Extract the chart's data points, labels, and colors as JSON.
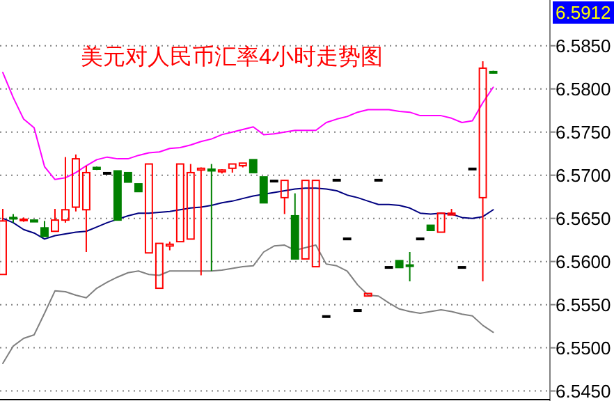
{
  "chart_data": {
    "type": "candlestick",
    "title": "美元对人民币汇率4小时走势图",
    "categories": [
      null,
      null,
      null,
      null,
      null,
      null,
      null,
      null,
      null,
      null,
      null,
      null,
      null,
      null,
      null,
      null,
      null,
      null,
      null,
      null,
      null,
      null,
      null,
      null,
      null,
      null,
      null,
      null,
      null,
      null,
      null,
      null,
      null,
      null,
      null,
      null,
      null,
      null,
      null,
      null,
      null,
      null,
      null,
      null,
      null,
      null,
      null,
      null
    ],
    "ohlc": [
      [
        6.5585,
        6.5661,
        6.5585,
        6.5647
      ],
      [
        6.5651,
        6.5655,
        6.5645,
        6.565
      ],
      [
        6.5648,
        6.5651,
        6.5646,
        6.5649
      ],
      [
        6.5648,
        6.5648,
        6.5646,
        6.5646
      ],
      [
        6.5639,
        6.5647,
        6.5629,
        6.5629
      ],
      [
        6.5635,
        6.5661,
        6.5635,
        6.5648
      ],
      [
        6.5648,
        6.5721,
        6.5645,
        6.566
      ],
      [
        6.5663,
        6.5724,
        6.5658,
        6.5719
      ],
      [
        6.566,
        6.5711,
        6.5611,
        6.5703
      ],
      [
        6.5709,
        6.571,
        6.5706,
        6.5707
      ],
      [
        6.5703,
        6.5703,
        6.5703,
        6.5703
      ],
      [
        6.5705,
        6.5705,
        6.5648,
        6.5648
      ],
      [
        6.5703,
        6.5703,
        6.5692,
        6.5692
      ],
      [
        6.569,
        6.569,
        6.5681,
        6.5681
      ],
      [
        6.561,
        6.5713,
        6.561,
        6.5713
      ],
      [
        6.5569,
        6.5621,
        6.5569,
        6.5621
      ],
      [
        6.5618,
        6.5623,
        6.5613,
        6.562
      ],
      [
        6.5623,
        6.5713,
        6.5623,
        6.5713
      ],
      [
        6.5626,
        6.5713,
        6.5626,
        6.5703
      ],
      [
        6.5706,
        6.5709,
        6.5584,
        6.5708
      ],
      [
        6.5707,
        6.5713,
        6.5589,
        6.5705
      ],
      [
        6.5704,
        6.5707,
        6.5702,
        6.5706
      ],
      [
        6.5708,
        6.5713,
        6.5703,
        6.5713
      ],
      [
        6.5711,
        6.5714,
        6.5709,
        6.5714
      ],
      [
        6.5718,
        6.5718,
        6.5703,
        6.5703
      ],
      [
        6.5698,
        6.5698,
        6.5668,
        6.5668
      ],
      [
        6.5694,
        6.5694,
        6.5694,
        6.5694
      ],
      [
        6.5674,
        6.5694,
        6.5655,
        6.5694
      ],
      [
        6.5653,
        6.5679,
        6.5603,
        6.5603
      ],
      [
        6.5603,
        6.5694,
        6.5603,
        6.5694
      ],
      [
        6.5594,
        6.5694,
        6.5594,
        6.5694
      ],
      [
        6.5537,
        6.5537,
        6.5537,
        6.5537
      ],
      [
        6.5695,
        6.5695,
        6.5695,
        6.5695
      ],
      [
        6.5627,
        6.5627,
        6.5627,
        6.5627
      ],
      [
        6.5544,
        6.5544,
        6.5544,
        6.5544
      ],
      [
        6.556,
        6.5563,
        6.556,
        6.5563
      ],
      [
        6.5695,
        6.5695,
        6.5695,
        6.5695
      ],
      [
        6.5594,
        6.5594,
        6.5594,
        6.5594
      ],
      [
        6.5601,
        6.5601,
        6.5593,
        6.5593
      ],
      [
        6.5596,
        6.5611,
        6.5577,
        6.5595
      ],
      [
        6.5627,
        6.5627,
        6.5627,
        6.5627
      ],
      [
        6.5642,
        6.5642,
        6.5636,
        6.5636
      ],
      [
        6.5634,
        6.5656,
        6.5634,
        6.5656
      ],
      [
        6.5654,
        6.5661,
        6.5654,
        6.5656
      ],
      [
        6.5594,
        6.5594,
        6.5594,
        6.5594
      ],
      [
        6.5708,
        6.5708,
        6.5708,
        6.5708
      ],
      [
        6.5674,
        6.5832,
        6.5577,
        6.5824
      ],
      [
        6.582,
        6.5821,
        6.5818,
        6.5819
      ]
    ],
    "colors": [
      "#ff0000",
      "#008000",
      "#ff0000",
      "#008000",
      "#008000",
      "#ff0000",
      "#ff0000",
      "#ff0000",
      "#ff0000",
      "#008000",
      "#000000",
      "#008000",
      "#008000",
      "#008000",
      "#ff0000",
      "#ff0000",
      "#ff0000",
      "#ff0000",
      "#ff0000",
      "#ff0000",
      "#008000",
      "#ff0000",
      "#ff0000",
      "#ff0000",
      "#008000",
      "#008000",
      "#000000",
      "#ff0000",
      "#008000",
      "#ff0000",
      "#ff0000",
      "#000000",
      "#000000",
      "#000000",
      "#000000",
      "#ff0000",
      "#000000",
      "#000000",
      "#008000",
      "#008000",
      "#000000",
      "#008000",
      "#ff0000",
      "#ff0000",
      "#000000",
      "#000000",
      "#ff0000",
      "#008000"
    ],
    "series": [
      {
        "type": "line",
        "color": "#ff00ff",
        "values": [
          6.5819,
          6.579,
          6.5765,
          6.5755,
          6.571,
          6.5695,
          6.5697,
          6.5703,
          6.5711,
          6.5718,
          6.5721,
          6.5719,
          6.5719,
          6.5723,
          6.5726,
          6.5727,
          6.5731,
          6.5732,
          6.5735,
          6.5739,
          6.5742,
          6.5747,
          6.575,
          6.5753,
          6.5756,
          6.5747,
          6.5748,
          6.575,
          6.5752,
          6.5752,
          6.5752,
          6.5761,
          6.5765,
          6.5768,
          6.5773,
          6.5776,
          6.5776,
          6.5776,
          6.5774,
          6.5773,
          6.5769,
          6.5769,
          6.5769,
          6.5766,
          6.5761,
          6.5763,
          6.5784,
          6.5802
        ]
      },
      {
        "type": "line",
        "color": "#000080",
        "values": [
          6.565,
          6.5645,
          6.5637,
          6.5633,
          6.5626,
          6.563,
          6.5632,
          6.5634,
          6.5635,
          6.564,
          6.5645,
          6.5649,
          6.5653,
          6.5656,
          6.5656,
          6.5657,
          6.5658,
          6.566,
          6.5662,
          6.5663,
          6.5665,
          6.5668,
          6.567,
          6.5673,
          6.5676,
          6.5678,
          6.568,
          6.5682,
          6.5684,
          6.5685,
          6.5685,
          6.5684,
          6.5682,
          6.5677,
          6.5674,
          6.567,
          6.5666,
          6.5666,
          6.5665,
          6.5662,
          6.5656,
          6.5655,
          6.5656,
          6.5655,
          6.5651,
          6.565,
          6.5652,
          6.566
        ]
      },
      {
        "type": "line",
        "color": "#808080",
        "values": [
          6.5482,
          6.5502,
          6.5511,
          6.5515,
          6.554,
          6.5566,
          6.5565,
          6.5561,
          6.5558,
          6.5569,
          6.5576,
          6.5582,
          6.5587,
          6.5589,
          6.5585,
          6.5584,
          6.5589,
          6.5589,
          6.5589,
          6.5589,
          6.5589,
          6.559,
          6.5592,
          6.5594,
          6.5595,
          6.5611,
          6.5618,
          6.5619,
          6.5613,
          6.5616,
          6.5619,
          6.5597,
          6.5595,
          6.5589,
          6.5573,
          6.5561,
          6.556,
          6.5552,
          6.5545,
          6.5542,
          6.554,
          6.5542,
          6.5544,
          6.5542,
          6.5539,
          6.5537,
          6.5526,
          6.5518
        ]
      }
    ],
    "ylim": [
      6.544,
      6.5903
    ],
    "yticks": [
      {
        "value": 6.545,
        "label": "6.5450"
      },
      {
        "value": 6.55,
        "label": "6.5500"
      },
      {
        "value": 6.555,
        "label": "6.5550"
      },
      {
        "value": 6.56,
        "label": "6.5600"
      },
      {
        "value": 6.565,
        "label": "6.5650"
      },
      {
        "value": 6.57,
        "label": "6.5700"
      },
      {
        "value": 6.575,
        "label": "6.5750"
      },
      {
        "value": 6.58,
        "label": "6.5800"
      },
      {
        "value": 6.585,
        "label": "6.5850"
      }
    ],
    "grid": "y",
    "tick_labels": "y",
    "annotations": [
      "6.5912"
    ]
  }
}
